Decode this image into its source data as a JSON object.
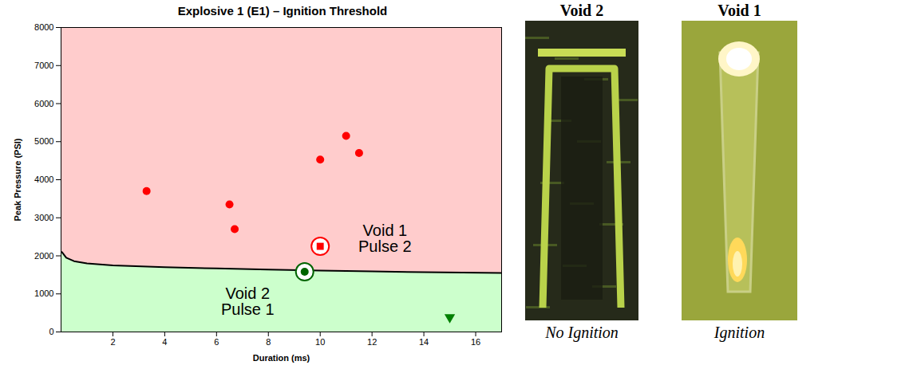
{
  "chart_data": {
    "type": "scatter",
    "title": "Explosive 1 (E1) – Ignition Threshold",
    "x_label": "Duration (ms)",
    "y_label": "Peak Pressure (PSI)",
    "xlim": [
      0,
      17
    ],
    "xticks": [
      2,
      4,
      6,
      8,
      10,
      12,
      14,
      16
    ],
    "ylim": [
      0,
      8000
    ],
    "yticks": [
      0,
      1000,
      2000,
      3000,
      4000,
      5000,
      6000,
      7000,
      8000
    ],
    "grid": false,
    "series": [
      {
        "type": "area",
        "color": "#ffcccc",
        "x": [
          0,
          17
        ],
        "values": [
          8000,
          8000
        ]
      },
      {
        "type": "area",
        "color": "#ccffcc",
        "x": [
          0.03,
          0.2,
          0.5,
          1,
          2,
          4,
          6,
          8,
          10,
          12,
          14,
          17
        ],
        "values": [
          2100,
          1950,
          1860,
          1800,
          1750,
          1700,
          1670,
          1640,
          1610,
          1590,
          1570,
          1550
        ]
      },
      {
        "type": "line",
        "color": "#000000",
        "line_style": "solid",
        "x": [
          0.03,
          0.2,
          0.5,
          1,
          2,
          4,
          6,
          8,
          10,
          12,
          14,
          17
        ],
        "values": [
          2100,
          1950,
          1860,
          1800,
          1750,
          1700,
          1670,
          1640,
          1610,
          1590,
          1570,
          1550
        ]
      },
      {
        "type": "scatter",
        "color": "#ff0000",
        "marker": "circle",
        "x": [
          3.3,
          6.5,
          6.7,
          10,
          11,
          11.5
        ],
        "values": [
          3700,
          3350,
          2700,
          4530,
          5150,
          4700
        ]
      },
      {
        "type": "scatter",
        "color": "#ff0000",
        "marker": "circled-square",
        "x": [
          10
        ],
        "values": [
          2250
        ]
      },
      {
        "type": "scatter",
        "color": "#006400",
        "marker": "circled-circle",
        "x": [
          9.4
        ],
        "values": [
          1580
        ]
      },
      {
        "type": "scatter",
        "color": "#008000",
        "marker": "triangle-down",
        "x": [
          15
        ],
        "values": [
          380
        ]
      }
    ],
    "annotations": [
      {
        "text": "Void 1\nPulse 2",
        "x": 12.5,
        "y": 2450
      },
      {
        "text": "Void 2\nPulse 1",
        "x": 7.2,
        "y": 800
      }
    ]
  },
  "images": [
    {
      "title": "Void 2",
      "caption": "No Ignition"
    },
    {
      "title": "Void 1",
      "caption": "Ignition"
    }
  ]
}
